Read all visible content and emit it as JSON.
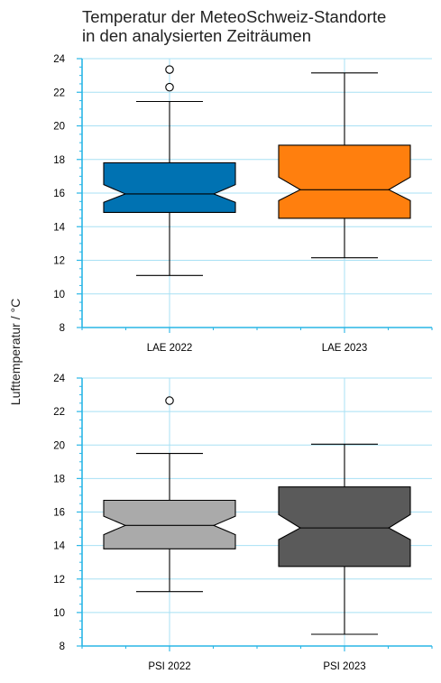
{
  "title_line1": "Temperatur der MeteoSchweiz-Standorte",
  "title_line2": "in den analysierten Zeiträumen",
  "ylabel": "Lufttemperatur / °C",
  "chart_data": [
    {
      "type": "box",
      "ylim": [
        8,
        24
      ],
      "yticks": [
        8,
        10,
        12,
        14,
        16,
        18,
        20,
        22,
        24
      ],
      "grid": true,
      "notched": true,
      "categories": [
        "LAE 2022",
        "LAE 2023"
      ],
      "boxes": [
        {
          "label": "LAE 2022",
          "color": "#0072b2",
          "whisker_low": 11.1,
          "q1": 14.85,
          "median": 15.95,
          "q3": 17.8,
          "whisker_high": 21.45,
          "notch_low": 15.45,
          "notch_high": 16.5,
          "outliers": [
            22.3,
            23.35
          ]
        },
        {
          "label": "LAE 2023",
          "color": "#ff7f0e",
          "whisker_low": 12.15,
          "q1": 14.5,
          "median": 16.2,
          "q3": 18.85,
          "whisker_high": 23.15,
          "notch_low": 15.55,
          "notch_high": 16.95,
          "outliers": []
        }
      ]
    },
    {
      "type": "box",
      "ylim": [
        8,
        24
      ],
      "yticks": [
        8,
        10,
        12,
        14,
        16,
        18,
        20,
        22,
        24
      ],
      "grid": true,
      "notched": true,
      "categories": [
        "PSI 2022",
        "PSI 2023"
      ],
      "boxes": [
        {
          "label": "PSI 2022",
          "color": "#aaaaaa",
          "whisker_low": 11.25,
          "q1": 13.8,
          "median": 15.2,
          "q3": 16.7,
          "whisker_high": 19.5,
          "notch_low": 14.65,
          "notch_high": 15.75,
          "outliers": [
            22.65
          ]
        },
        {
          "label": "PSI 2023",
          "color": "#5a5a5a",
          "whisker_low": 8.7,
          "q1": 12.75,
          "median": 15.05,
          "q3": 17.5,
          "whisker_high": 20.05,
          "notch_low": 14.35,
          "notch_high": 15.85,
          "outliers": []
        }
      ]
    }
  ]
}
